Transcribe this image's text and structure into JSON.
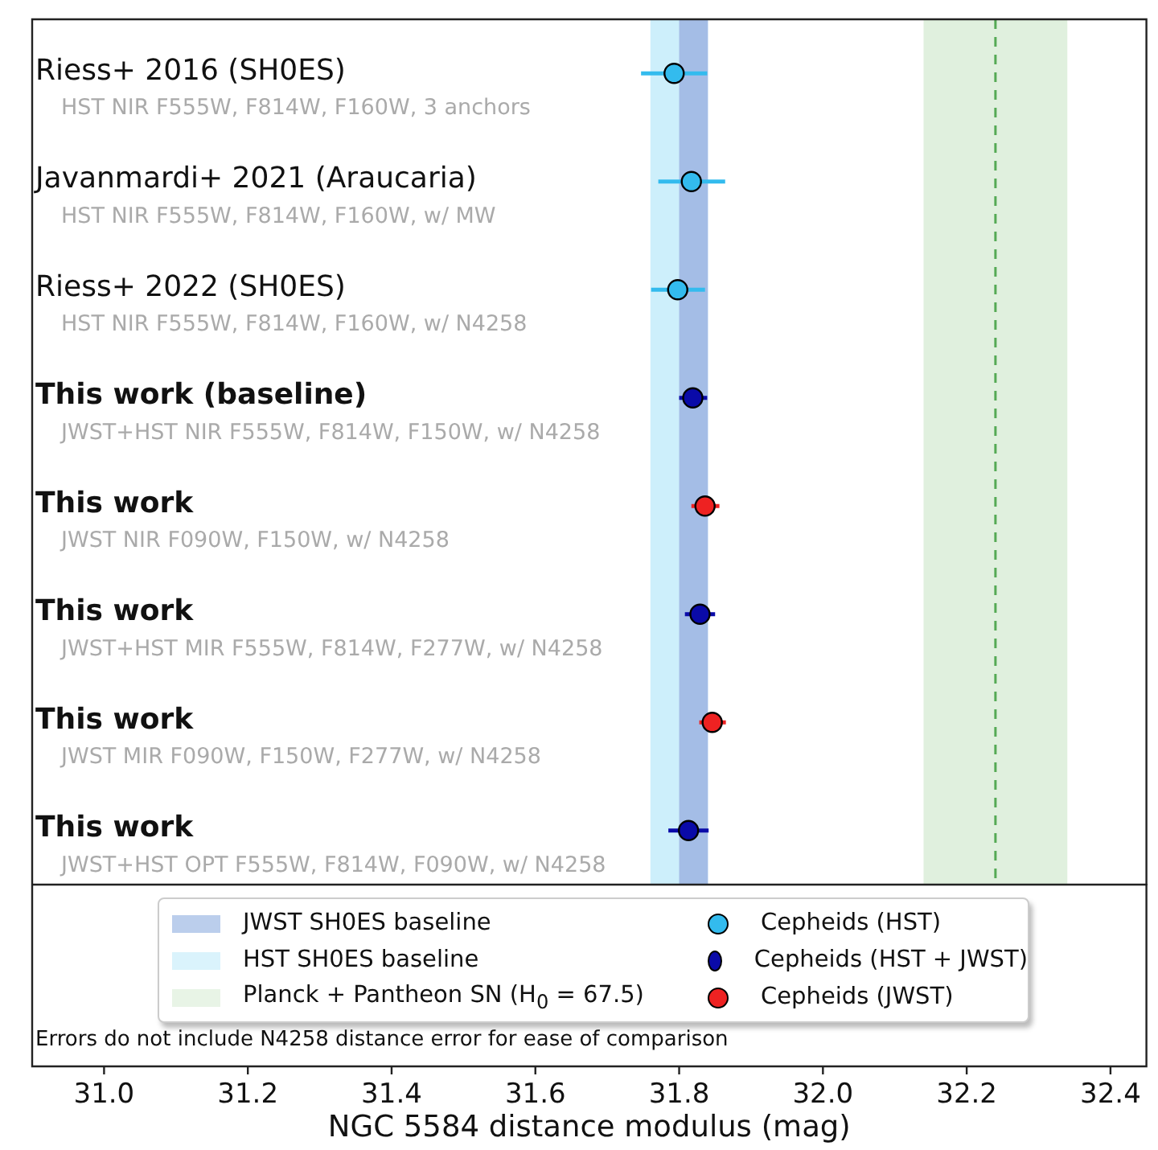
{
  "chart_data": {
    "type": "scatter",
    "orientation": "horizontal",
    "xlabel": "NGC 5584 distance modulus (mag)",
    "categories": [
      "Riess+ 2016 (SH0ES)\nHST NIR F555W, F814W, F160W, 3 anchors",
      "Javanmardi+ 2021 (Araucaria)\nHST NIR F555W, F814W, F160W, w/ MW",
      "Riess+ 2022 (SH0ES)\nHST NIR F555W, F814W, F160W, w/ N4258",
      "This work (baseline)\nJWST+HST NIR F555W, F814W, F150W, w/ N4258",
      "This work\nJWST NIR F090W, F150W, w/ N4258",
      "This work\nJWST+HST MIR F555W, F814W, F277W, w/ N4258",
      "This work\nJWST MIR F090W, F150W, F277W, w/ N4258",
      "This work\nJWST+HST OPT F555W, F814W, F090W, w/ N4258"
    ],
    "series": [
      {
        "name": "Cepheids (HST)",
        "color": "#33bbee",
        "values": [
          31.793,
          31.817,
          31.798,
          null,
          null,
          null,
          null,
          null
        ],
        "errors": [
          [
            31.747,
            31.839
          ],
          [
            31.771,
            31.864
          ],
          [
            31.761,
            31.836
          ],
          null,
          null,
          null,
          null,
          null
        ]
      },
      {
        "name": "Cepheids (HST + JWST)",
        "color": "#0a0aa8",
        "values": [
          null,
          null,
          null,
          31.819,
          null,
          31.829,
          null,
          31.813
        ],
        "errors": [
          null,
          null,
          null,
          [
            31.8,
            31.839
          ],
          null,
          [
            31.808,
            31.85
          ],
          null,
          [
            31.785,
            31.841
          ]
        ]
      },
      {
        "name": "Cepheids (JWST)",
        "color": "#ee2222",
        "values": [
          null,
          null,
          null,
          null,
          31.836,
          null,
          31.846,
          null
        ],
        "errors": [
          null,
          null,
          null,
          null,
          [
            31.817,
            31.856
          ],
          null,
          [
            31.828,
            31.865
          ],
          null
        ]
      }
    ],
    "bands": [
      {
        "axis": "x",
        "from": 31.8,
        "to": 31.84,
        "label": "JWST SH0ES baseline",
        "color": "#a4bde6"
      },
      {
        "axis": "x",
        "from": 31.76,
        "to": 31.84,
        "label": "HST SH0ES baseline",
        "color": "#cdeffb"
      },
      {
        "axis": "x",
        "from": 32.14,
        "to": 32.34,
        "label": "Planck + Pantheon SN (H$_{0}$ = 67.5)",
        "color": "#e0f0de"
      }
    ],
    "ref_lines": [
      {
        "axis": "x",
        "value": 32.24,
        "color": "#55aa55",
        "line_style": "dashed"
      }
    ],
    "xlim": [
      30.9,
      32.45
    ],
    "xticks": [
      {
        "value": 31,
        "label": "31.0"
      },
      31.2,
      31.4,
      31.6,
      31.8,
      {
        "value": 32,
        "label": "32.0"
      },
      32.2,
      32.4
    ],
    "legend": "bottom",
    "marker": "circle",
    "annotations": [
      "Errors do not include N4258 distance error for ease of comparison"
    ]
  }
}
